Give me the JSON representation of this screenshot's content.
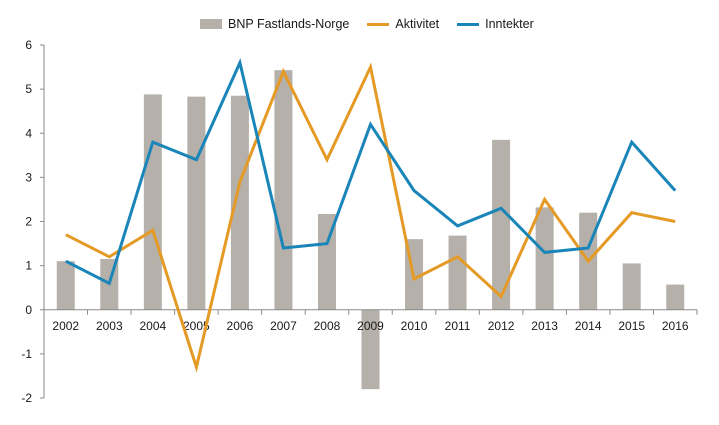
{
  "chart_data": {
    "type": "bar",
    "categories": [
      "2002",
      "2003",
      "2004",
      "2005",
      "2006",
      "2007",
      "2008",
      "2009",
      "2010",
      "2011",
      "2012",
      "2013",
      "2014",
      "2015",
      "2016"
    ],
    "series": [
      {
        "name": "BNP Fastlands-Norge",
        "kind": "bar",
        "color": "#b5b0aa",
        "values": [
          1.1,
          1.15,
          4.88,
          4.83,
          4.85,
          5.43,
          2.17,
          -1.8,
          1.6,
          1.68,
          3.85,
          2.32,
          2.2,
          1.05,
          0.57
        ]
      },
      {
        "name": "Aktivitet",
        "kind": "line",
        "color": "#e59a25",
        "values": [
          1.7,
          1.2,
          1.8,
          -1.3,
          2.9,
          5.4,
          3.4,
          5.5,
          0.7,
          1.2,
          0.3,
          2.5,
          1.1,
          2.2,
          2.0
        ]
      },
      {
        "name": "Inntekter",
        "kind": "line",
        "color": "#1a85b8",
        "values": [
          1.1,
          0.6,
          3.8,
          3.4,
          5.6,
          1.4,
          1.5,
          4.2,
          2.7,
          1.9,
          2.3,
          1.3,
          1.4,
          3.8,
          2.7
        ]
      }
    ],
    "y_ticks": [
      "-2",
      "-1",
      "0",
      "1",
      "2",
      "3",
      "4",
      "5",
      "6"
    ],
    "ylim": [
      -2,
      6
    ],
    "grid": false,
    "legend_position": "top-center"
  }
}
